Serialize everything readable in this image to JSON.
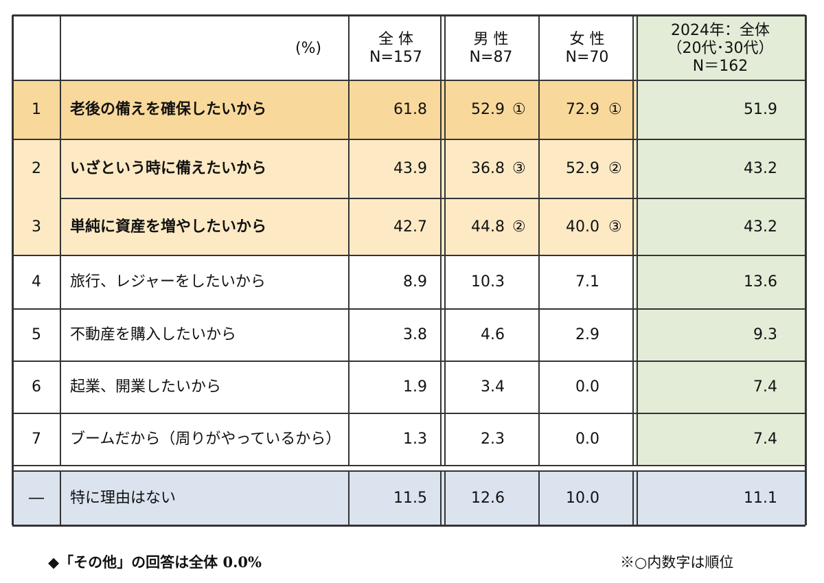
{
  "table": {
    "header": {
      "unit": "(%)",
      "columns": [
        [
          "全 体",
          "N=157"
        ],
        [
          "男 性",
          "N=87"
        ],
        [
          "女 性",
          "N=70"
        ],
        [
          "2024年：全体",
          "（20代･30代）",
          "N＝162"
        ]
      ]
    },
    "rows": [
      {
        "rank": "1",
        "label": "老後の備えを確保したいから",
        "all": "61.8",
        "male": "52.9",
        "male_rank": "①",
        "female": "72.9",
        "female_rank": "①",
        "y2024": "51.9"
      },
      {
        "rank": "2",
        "label": "いざという時に備えたいから",
        "all": "43.9",
        "male": "36.8",
        "male_rank": "③",
        "female": "52.9",
        "female_rank": "②",
        "y2024": "43.2"
      },
      {
        "rank": "3",
        "label": "単純に資産を増やしたいから",
        "all": "42.7",
        "male": "44.8",
        "male_rank": "②",
        "female": "40.0",
        "female_rank": "③",
        "y2024": "43.2"
      },
      {
        "rank": "4",
        "label": "旅行、レジャーをしたいから",
        "all": "8.9",
        "male": "10.3",
        "female": "7.1",
        "y2024": "13.6"
      },
      {
        "rank": "5",
        "label": "不動産を購入したいから",
        "all": "3.8",
        "male": "4.6",
        "female": "2.9",
        "y2024": "9.3"
      },
      {
        "rank": "6",
        "label": "起業、開業したいから",
        "all": "1.9",
        "male": "3.4",
        "female": "0.0",
        "y2024": "7.4"
      },
      {
        "rank": "7",
        "label": "ブームだから（周りがやっているから）",
        "all": "1.3",
        "male": "2.3",
        "female": "0.0",
        "y2024": "7.4"
      },
      {
        "rank": "―",
        "label": "特に理由はない",
        "all": "11.5",
        "male": "12.6",
        "female": "10.0",
        "y2024": "11.1"
      }
    ]
  },
  "notes": {
    "left": "◆「その他」の回答は全体 0.0%",
    "right": "※○内数字は順位"
  }
}
